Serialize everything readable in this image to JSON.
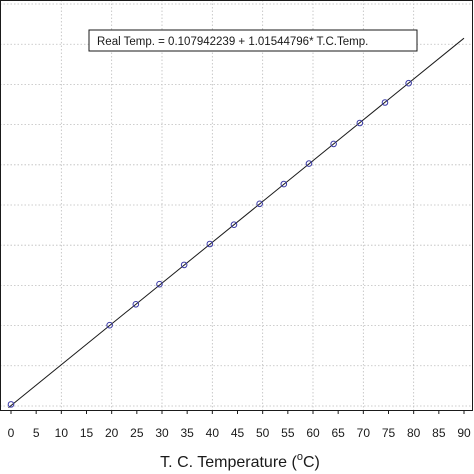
{
  "chart_data": {
    "type": "scatter",
    "xlabel_main": "T. C. Temperature (",
    "xlabel_sup": "o",
    "xlabel_end": "C)",
    "equation": "Real Temp. = 0.107942239 + 1.01544796* T.C.Temp.",
    "xlim": [
      0,
      90
    ],
    "ylim": [
      -1,
      101
    ],
    "x_ticks": [
      "0",
      "5",
      "10",
      "15",
      "20",
      "25",
      "30",
      "35",
      "40",
      "45",
      "50",
      "55",
      "60",
      "65",
      "70",
      "75",
      "80",
      "85",
      "90"
    ],
    "fit": {
      "intercept": 0.107942239,
      "slope": 1.01544796
    },
    "grid": true,
    "series": [
      {
        "marker": "open-circle",
        "color": "#3a3aa6",
        "x": [
          0,
          19.6,
          24.8,
          29.5,
          34.4,
          39.5,
          44.3,
          49.4,
          54.2,
          59.2,
          64.1,
          69.3,
          74.3,
          79.0
        ],
        "y": [
          0.4,
          20.1,
          25.3,
          30.3,
          35.1,
          40.3,
          45.1,
          50.3,
          55.2,
          60.3,
          65.2,
          70.4,
          75.5,
          80.3
        ]
      }
    ],
    "line_color": "#1a1a1a"
  }
}
